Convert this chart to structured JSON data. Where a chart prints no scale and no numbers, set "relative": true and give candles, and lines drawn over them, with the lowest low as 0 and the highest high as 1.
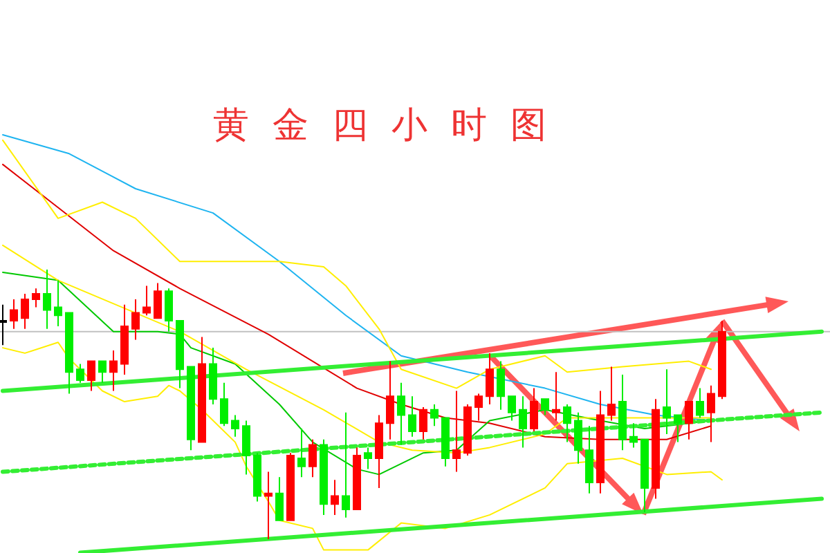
{
  "chart_data": {
    "type": "candlestick",
    "title": "黄金四小时图",
    "relative": true,
    "categories": [
      null,
      null,
      null,
      null,
      null,
      null,
      null,
      null,
      null,
      null,
      null,
      null,
      null,
      null,
      null,
      null,
      null,
      null,
      null,
      null,
      null,
      null,
      null,
      null,
      null,
      null,
      null,
      null,
      null,
      null,
      null,
      null,
      null,
      null,
      null,
      null,
      null,
      null,
      null,
      null,
      null,
      null,
      null,
      null,
      null,
      null,
      null,
      null,
      null,
      null,
      null,
      null,
      null,
      null,
      null,
      null,
      null,
      null,
      null,
      null,
      null,
      null,
      null,
      null,
      null,
      null,
      null,
      null,
      null,
      null,
      null,
      null,
      null,
      null,
      null
    ],
    "ohlc": [
      [
        0.81,
        0.87,
        0.72,
        0.81
      ],
      [
        0.81,
        0.89,
        0.78,
        0.85
      ],
      [
        0.82,
        0.91,
        0.78,
        0.89
      ],
      [
        0.89,
        0.93,
        0.86,
        0.91
      ],
      [
        0.91,
        1.0,
        0.78,
        0.85
      ],
      [
        0.86,
        0.96,
        0.79,
        0.83
      ],
      [
        0.84,
        0.84,
        0.54,
        0.62
      ],
      [
        0.63,
        0.65,
        0.58,
        0.59
      ],
      [
        0.59,
        0.66,
        0.55,
        0.66
      ],
      [
        0.66,
        0.66,
        0.58,
        0.62
      ],
      [
        0.62,
        0.7,
        0.55,
        0.66
      ],
      [
        0.65,
        0.87,
        0.61,
        0.79
      ],
      [
        0.78,
        0.89,
        0.74,
        0.84
      ],
      [
        0.84,
        0.94,
        0.83,
        0.86
      ],
      [
        0.82,
        0.95,
        0.82,
        0.92
      ],
      [
        0.92,
        0.93,
        0.77,
        0.81
      ],
      [
        0.81,
        0.81,
        0.56,
        0.63
      ],
      [
        0.64,
        0.64,
        0.33,
        0.37
      ],
      [
        0.36,
        0.75,
        0.36,
        0.65
      ],
      [
        0.65,
        0.71,
        0.5,
        0.52
      ],
      [
        0.52,
        0.58,
        0.42,
        0.43
      ],
      [
        0.44,
        0.46,
        0.38,
        0.41
      ],
      [
        0.42,
        0.44,
        0.24,
        0.31
      ],
      [
        0.31,
        0.32,
        0.14,
        0.16
      ],
      [
        0.16,
        0.25,
        0.0,
        0.17
      ],
      [
        0.17,
        0.23,
        0.07,
        0.07
      ],
      [
        0.07,
        0.32,
        0.07,
        0.31
      ],
      [
        0.3,
        0.41,
        0.23,
        0.27
      ],
      [
        0.27,
        0.37,
        0.23,
        0.35
      ],
      [
        0.35,
        0.37,
        0.09,
        0.13
      ],
      [
        0.13,
        0.22,
        0.09,
        0.16
      ],
      [
        0.16,
        0.47,
        0.08,
        0.11
      ],
      [
        0.11,
        0.34,
        0.11,
        0.31
      ],
      [
        0.32,
        0.34,
        0.26,
        0.3
      ],
      [
        0.3,
        0.46,
        0.19,
        0.43
      ],
      [
        0.43,
        0.66,
        0.37,
        0.53
      ],
      [
        0.53,
        0.58,
        0.35,
        0.46
      ],
      [
        0.46,
        0.53,
        0.38,
        0.4
      ],
      [
        0.4,
        0.49,
        0.37,
        0.48
      ],
      [
        0.48,
        0.5,
        0.42,
        0.45
      ],
      [
        0.45,
        0.45,
        0.27,
        0.3
      ],
      [
        0.3,
        0.55,
        0.25,
        0.33
      ],
      [
        0.32,
        0.5,
        0.31,
        0.49
      ],
      [
        0.49,
        0.54,
        0.44,
        0.53
      ],
      [
        0.53,
        0.69,
        0.5,
        0.63
      ],
      [
        0.63,
        0.66,
        0.48,
        0.53
      ],
      [
        0.53,
        0.53,
        0.44,
        0.47
      ],
      [
        0.48,
        0.53,
        0.34,
        0.41
      ],
      [
        0.41,
        0.56,
        0.4,
        0.51
      ],
      [
        0.52,
        0.52,
        0.46,
        0.48
      ],
      [
        0.47,
        0.62,
        0.44,
        0.48
      ],
      [
        0.49,
        0.5,
        0.36,
        0.43
      ],
      [
        0.44,
        0.47,
        0.28,
        0.33
      ],
      [
        0.33,
        0.42,
        0.17,
        0.21
      ],
      [
        0.21,
        0.55,
        0.17,
        0.46
      ],
      [
        0.46,
        0.64,
        0.44,
        0.5
      ],
      [
        0.51,
        0.61,
        0.33,
        0.37
      ],
      [
        0.38,
        0.43,
        0.34,
        0.36
      ],
      [
        0.37,
        0.37,
        0.1,
        0.19
      ],
      [
        0.19,
        0.52,
        0.15,
        0.48
      ],
      [
        0.49,
        0.63,
        0.39,
        0.45
      ],
      [
        0.46,
        0.46,
        0.36,
        0.43
      ],
      [
        0.43,
        0.51,
        0.37,
        0.51
      ],
      [
        0.51,
        0.56,
        0.45,
        0.46
      ],
      [
        0.47,
        0.57,
        0.36,
        0.54
      ],
      [
        0.53,
        0.81,
        0.52,
        0.77
      ],
      null,
      null,
      null,
      null,
      null,
      null,
      null,
      null,
      null
    ],
    "colors": [
      "#000000",
      "#ff0000",
      "#ff0000",
      "#ff0000",
      "#00ee00",
      "#00ee00",
      "#00ee00",
      "#00ee00",
      "#ff0000",
      "#00ee00",
      "#ff0000",
      "#ff0000",
      "#ff0000",
      "#ff0000",
      "#ff0000",
      "#00ee00",
      "#00ee00",
      "#00ee00",
      "#ff0000",
      "#00ee00",
      "#00ee00",
      "#00ee00",
      "#00ee00",
      "#00ee00",
      "#ff0000",
      "#00ee00",
      "#ff0000",
      "#00ee00",
      "#ff0000",
      "#00ee00",
      "#ff0000",
      "#00ee00",
      "#ff0000",
      "#00ee00",
      "#ff0000",
      "#ff0000",
      "#00ee00",
      "#00ee00",
      "#ff0000",
      "#00ee00",
      "#00ee00",
      "#ff0000",
      "#ff0000",
      "#ff0000",
      "#ff0000",
      "#00ee00",
      "#00ee00",
      "#00ee00",
      "#ff0000",
      "#00ee00",
      "#ff0000",
      "#00ee00",
      "#00ee00",
      "#00ee00",
      "#ff0000",
      "#ff0000",
      "#00ee00",
      "#00ee00",
      "#00ee00",
      "#ff0000",
      "#00ee00",
      "#00ee00",
      "#ff0000",
      "#00ee00",
      "#ff0000",
      "#ff0000",
      null,
      null,
      null,
      null,
      null,
      null,
      null,
      null,
      null
    ],
    "series": [
      {
        "type": "line",
        "color": "#1eb4f0",
        "values": [
          1.5,
          null,
          null,
          null,
          null,
          null,
          1.43,
          null,
          null,
          null,
          null,
          null,
          1.3,
          null,
          null,
          null,
          null,
          null,
          null,
          1.21,
          null,
          null,
          null,
          null,
          null,
          1.03,
          null,
          null,
          null,
          null,
          null,
          0.83,
          null,
          null,
          null,
          null,
          0.68,
          null,
          null,
          null,
          null,
          null,
          0.62,
          null,
          null,
          null,
          null,
          null,
          null,
          0.56,
          null,
          null,
          null,
          null,
          0.5,
          null,
          null,
          null,
          null,
          0.46,
          null,
          null,
          null,
          null,
          0.44,
          null,
          null,
          null,
          null,
          null,
          null,
          null,
          null,
          null,
          null
        ]
      },
      {
        "type": "line",
        "color": "#e00000",
        "values": [
          1.39,
          null,
          null,
          null,
          null,
          1.23,
          null,
          null,
          null,
          null,
          1.07,
          null,
          null,
          null,
          null,
          null,
          0.93,
          null,
          null,
          null,
          null,
          null,
          null,
          null,
          0.76,
          null,
          null,
          null,
          0.66,
          null,
          null,
          null,
          0.56,
          null,
          null,
          null,
          0.5,
          null,
          null,
          null,
          0.45,
          null,
          null,
          null,
          0.43,
          null,
          null,
          null,
          null,
          0.38,
          null,
          null,
          null,
          null,
          0.37,
          null,
          null,
          null,
          null,
          null,
          0.37,
          null,
          null,
          null,
          0.42,
          null,
          null,
          null,
          null,
          null,
          null,
          null,
          null,
          null,
          null
        ]
      },
      {
        "type": "line",
        "color": "#00c800",
        "values": [
          0.99,
          null,
          null,
          null,
          null,
          0.96,
          null,
          null,
          null,
          null,
          0.77,
          null,
          null,
          null,
          0.77,
          null,
          0.76,
          0.71,
          null,
          null,
          null,
          0.65,
          null,
          null,
          null,
          0.5,
          null,
          null,
          0.36,
          null,
          null,
          null,
          0.26,
          null,
          0.24,
          null,
          null,
          null,
          0.32,
          null,
          null,
          0.33,
          null,
          null,
          0.44,
          null,
          null,
          null,
          null,
          0.48,
          null,
          null,
          null,
          null,
          0.44,
          null,
          null,
          null,
          0.41,
          null,
          null,
          null,
          null,
          null,
          0.44,
          null,
          null,
          null,
          null,
          null,
          null,
          null,
          null,
          null,
          null
        ]
      },
      {
        "type": "line",
        "color": "#ffee00",
        "values": [
          1.48,
          null,
          null,
          null,
          null,
          1.19,
          null,
          null,
          null,
          1.25,
          null,
          null,
          1.19,
          null,
          null,
          null,
          1.03,
          null,
          null,
          null,
          null,
          null,
          null,
          null,
          null,
          1.03,
          null,
          null,
          null,
          1.01,
          null,
          0.94,
          null,
          null,
          0.78,
          null,
          0.63,
          null,
          null,
          null,
          null,
          0.56,
          null,
          null,
          0.63,
          null,
          null,
          null,
          null,
          0.68,
          null,
          0.62,
          null,
          null,
          null,
          null,
          0.64,
          null,
          null,
          null,
          null,
          null,
          0.66,
          null,
          0.63,
          null,
          null,
          null,
          null,
          null,
          null,
          null,
          null,
          null,
          null
        ]
      },
      {
        "type": "line",
        "color": "#ffee00",
        "values": [
          1.09,
          null,
          null,
          null,
          null,
          0.96,
          null,
          null,
          null,
          null,
          null,
          null,
          null,
          null,
          null,
          null,
          0.77,
          null,
          null,
          null,
          null,
          null,
          0.63,
          null,
          null,
          null,
          null,
          null,
          null,
          0.48,
          null,
          null,
          null,
          null,
          0.36,
          null,
          null,
          0.33,
          null,
          null,
          null,
          0.32,
          null,
          null,
          0.34,
          null,
          null,
          null,
          null,
          0.39,
          null,
          0.45,
          null,
          null,
          null,
          null,
          null,
          null,
          0.45,
          null,
          null,
          null,
          null,
          null,
          0.45,
          null,
          null,
          null,
          null,
          null,
          null,
          null,
          null,
          null,
          null
        ]
      },
      {
        "type": "line",
        "color": "#ffee00",
        "values": [
          0.71,
          null,
          0.69,
          null,
          null,
          0.73,
          0.67,
          null,
          null,
          0.55,
          null,
          0.51,
          null,
          null,
          0.53,
          0.57,
          0.55,
          null,
          0.48,
          null,
          null,
          0.36,
          0.27,
          null,
          0.14,
          0.07,
          null,
          null,
          0.04,
          -0.04,
          null,
          null,
          null,
          -0.04,
          null,
          null,
          0.06,
          null,
          null,
          null,
          0.04,
          null,
          null,
          null,
          0.09,
          null,
          null,
          null,
          null,
          0.19,
          null,
          0.28,
          null,
          null,
          null,
          null,
          0.3,
          null,
          null,
          null,
          0.24,
          null,
          null,
          null,
          0.25,
          0.22,
          null,
          null,
          null,
          null,
          null,
          null,
          null,
          null,
          null
        ]
      },
      {
        "type": "line",
        "color": "#33ee33",
        "values": [
          0.55,
          null,
          null,
          null,
          null,
          null,
          null,
          null,
          null,
          null,
          null,
          null,
          null,
          null,
          null,
          null,
          null,
          null,
          null,
          null,
          null,
          null,
          null,
          null,
          null,
          null,
          null,
          null,
          null,
          null,
          null,
          null,
          null,
          null,
          null,
          null,
          null,
          null,
          null,
          null,
          null,
          null,
          null,
          null,
          null,
          null,
          null,
          null,
          null,
          null,
          null,
          null,
          null,
          null,
          null,
          null,
          null,
          null,
          null,
          null,
          null,
          null,
          null,
          null,
          null,
          null,
          null,
          null,
          null,
          null,
          null,
          null,
          null,
          null,
          0.77
        ]
      },
      {
        "type": "line",
        "color": "#33ee33",
        "line_style": "dashed",
        "values": [
          0.25,
          null,
          null,
          null,
          null,
          null,
          null,
          null,
          null,
          null,
          null,
          null,
          null,
          null,
          null,
          null,
          null,
          null,
          null,
          null,
          null,
          null,
          null,
          null,
          null,
          null,
          null,
          null,
          null,
          null,
          null,
          null,
          null,
          null,
          null,
          null,
          null,
          null,
          null,
          null,
          null,
          null,
          null,
          null,
          null,
          null,
          null,
          null,
          null,
          null,
          null,
          null,
          null,
          null,
          null,
          null,
          null,
          null,
          null,
          null,
          null,
          null,
          null,
          null,
          null,
          null,
          null,
          null,
          null,
          null,
          null,
          null,
          null,
          null,
          0.47
        ]
      },
      {
        "type": "line",
        "color": "#33ee33",
        "values": [
          null,
          null,
          null,
          null,
          null,
          null,
          null,
          -0.05,
          null,
          null,
          null,
          null,
          null,
          null,
          null,
          null,
          null,
          null,
          null,
          null,
          null,
          null,
          null,
          null,
          null,
          null,
          null,
          null,
          null,
          null,
          null,
          null,
          null,
          null,
          null,
          null,
          null,
          null,
          null,
          null,
          null,
          null,
          null,
          null,
          null,
          null,
          null,
          null,
          null,
          null,
          null,
          null,
          null,
          null,
          null,
          null,
          null,
          null,
          null,
          null,
          null,
          null,
          null,
          null,
          null,
          null,
          null,
          null,
          null,
          null,
          null,
          null,
          null,
          null,
          0.15
        ]
      }
    ],
    "ref_lines": [
      {
        "axis": "y",
        "value": 0.77,
        "color": "#c0c0c0"
      }
    ]
  }
}
